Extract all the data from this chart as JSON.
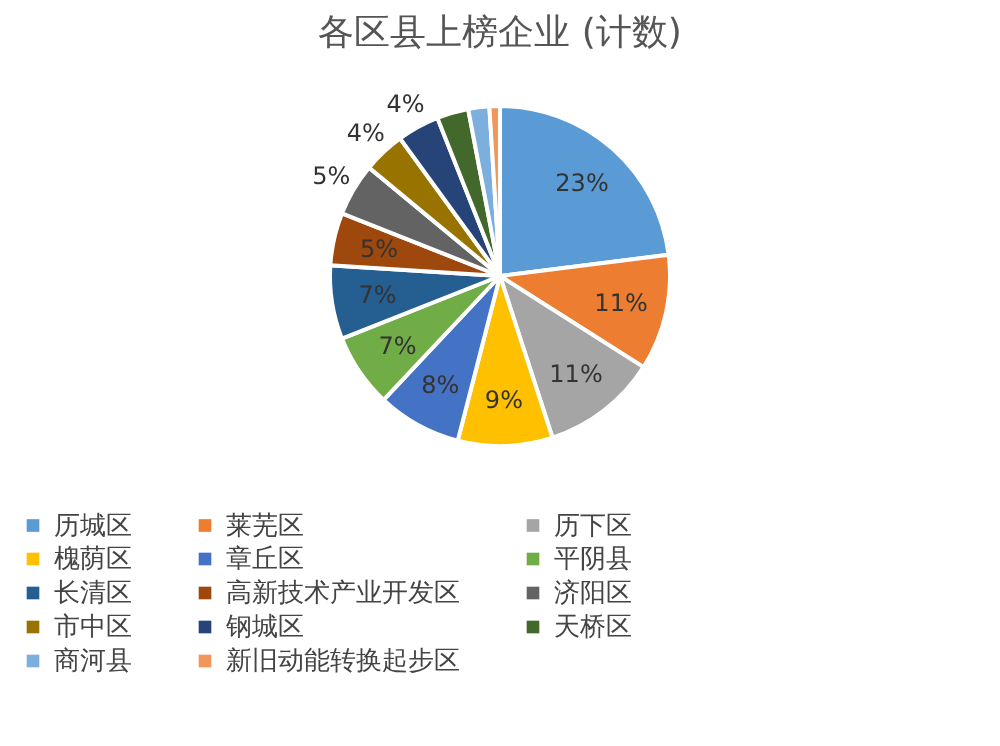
{
  "chart_data": {
    "type": "pie",
    "title": "各区县上榜企业 (计数)",
    "categories": [
      "历城区",
      "莱芜区",
      "历下区",
      "槐荫区",
      "章丘区",
      "平阴县",
      "长清区",
      "高新技术产业开发区",
      "济阳区",
      "市中区",
      "钢城区",
      "天桥区",
      "商河县",
      "新旧动能转换起步区"
    ],
    "values": [
      23,
      11,
      11,
      9,
      8,
      7,
      7,
      5,
      5,
      4,
      4,
      3,
      2,
      1
    ],
    "value_labels": [
      "23%",
      "11%",
      "11%",
      "9%",
      "8%",
      "7%",
      "7%",
      "5%",
      "5%",
      "4%",
      "4%",
      null,
      null,
      null
    ],
    "colors": [
      "#5b9bd5",
      "#ed7d31",
      "#a5a5a5",
      "#ffc000",
      "#4472c4",
      "#70ad47",
      "#255e91",
      "#9e480e",
      "#636363",
      "#997300",
      "#264478",
      "#43682b",
      "#7cafdd",
      "#f1975a"
    ],
    "legend": "bottom"
  }
}
